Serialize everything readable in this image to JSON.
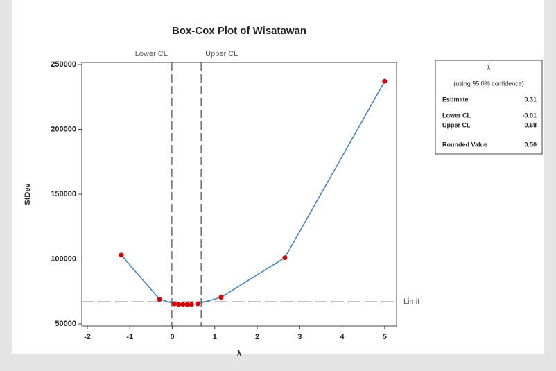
{
  "chart_data": {
    "type": "line",
    "title": "Box-Cox Plot of Wisatawan",
    "x_label": "λ",
    "y_label": "StDev",
    "x": [
      -1.2,
      -0.3,
      0.05,
      0.15,
      0.25,
      0.35,
      0.45,
      0.6,
      1.15,
      2.65,
      5.0
    ],
    "series": [
      {
        "name": "StDev",
        "color": "#3a7dc0",
        "marker_color": "#d40000",
        "values": [
          103000,
          69000,
          65500,
          65000,
          65000,
          65000,
          65000,
          65500,
          70500,
          101000,
          237000
        ]
      }
    ],
    "xlim": [
      -2.13,
      5.28
    ],
    "xticks": [
      -2,
      -1,
      0,
      1,
      2,
      3,
      4,
      5
    ],
    "ylim": [
      48400,
      251600
    ],
    "yticks": [
      50000,
      100000,
      150000,
      200000,
      250000
    ],
    "vertical_lines": [
      {
        "label": "Lower CL",
        "x": -0.01
      },
      {
        "label": "Upper CL",
        "x": 0.68
      }
    ],
    "horizontal_lines": [
      {
        "label": "Limit",
        "y": 67000
      }
    ],
    "info_table": {
      "header": "λ",
      "subheader": "(using 95.0% confidence)",
      "rows": [
        [
          "Estimate",
          "0.31"
        ],
        [
          "Lower CL",
          "-0.01"
        ],
        [
          "Upper CL",
          "0.68"
        ],
        [
          "Rounded Value",
          "0.50"
        ]
      ]
    }
  }
}
